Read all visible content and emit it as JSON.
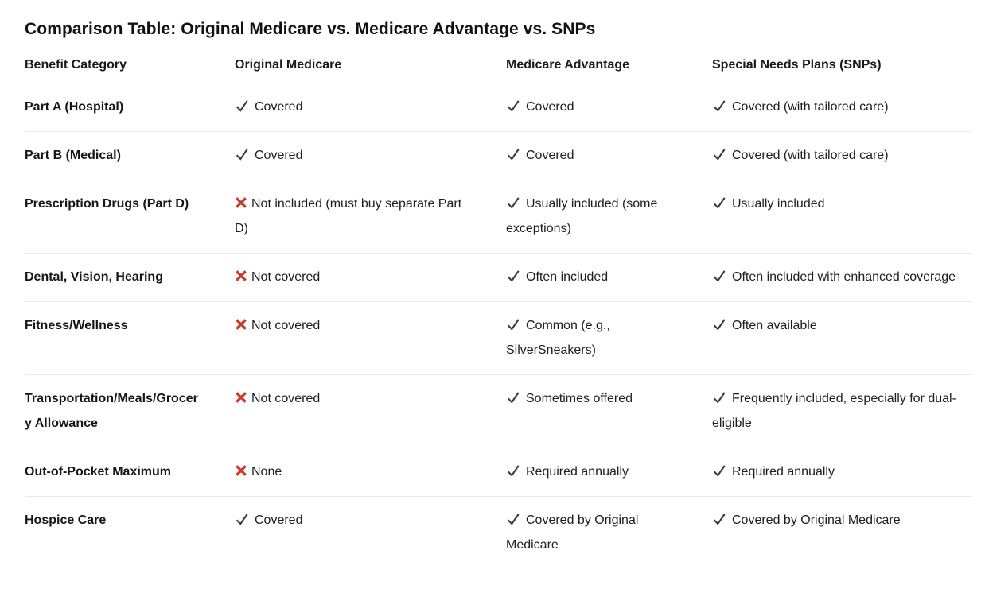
{
  "page": {
    "title": "Comparison Table: Original Medicare vs. Medicare Advantage vs. SNPs"
  },
  "table": {
    "columns": [
      "Benefit Category",
      "Original Medicare",
      "Medicare Advantage",
      "Special Needs Plans (SNPs)"
    ],
    "rows": [
      {
        "category": "Part A (Hospital)",
        "cells": [
          {
            "icon": "check",
            "text": "Covered"
          },
          {
            "icon": "check",
            "text": "Covered"
          },
          {
            "icon": "check",
            "text": "Covered (with tailored care)"
          }
        ]
      },
      {
        "category": "Part B (Medical)",
        "cells": [
          {
            "icon": "check",
            "text": "Covered"
          },
          {
            "icon": "check",
            "text": "Covered"
          },
          {
            "icon": "check",
            "text": "Covered (with tailored care)"
          }
        ]
      },
      {
        "category": "Prescription Drugs (Part D)",
        "cells": [
          {
            "icon": "x",
            "text": "Not included (must buy separate Part D)"
          },
          {
            "icon": "check",
            "text": "Usually included (some exceptions)"
          },
          {
            "icon": "check",
            "text": "Usually included"
          }
        ]
      },
      {
        "category": "Dental, Vision, Hearing",
        "cells": [
          {
            "icon": "x",
            "text": "Not covered"
          },
          {
            "icon": "check",
            "text": "Often included"
          },
          {
            "icon": "check",
            "text": "Often included with enhanced coverage"
          }
        ]
      },
      {
        "category": "Fitness/Wellness",
        "cells": [
          {
            "icon": "x",
            "text": "Not covered"
          },
          {
            "icon": "check",
            "text": "Common (e.g., SilverSneakers)"
          },
          {
            "icon": "check",
            "text": "Often available"
          }
        ]
      },
      {
        "category": "Transportation/Meals/Grocery Allowance",
        "cells": [
          {
            "icon": "x",
            "text": "Not covered"
          },
          {
            "icon": "check",
            "text": "Sometimes offered"
          },
          {
            "icon": "check",
            "text": "Frequently included, especially for dual-eligible"
          }
        ]
      },
      {
        "category": "Out-of-Pocket Maximum",
        "cells": [
          {
            "icon": "x",
            "text": "None"
          },
          {
            "icon": "check",
            "text": "Required annually"
          },
          {
            "icon": "check",
            "text": "Required annually"
          }
        ]
      },
      {
        "category": "Hospice Care",
        "cells": [
          {
            "icon": "check",
            "text": "Covered"
          },
          {
            "icon": "check",
            "text": "Covered by Original Medicare"
          },
          {
            "icon": "check",
            "text": "Covered by Original Medicare"
          }
        ]
      }
    ],
    "colors": {
      "check": "#3b3b3b",
      "x": "#d2372b",
      "row_border": "#e9e9e9",
      "header_border": "#dcdcdc"
    }
  }
}
